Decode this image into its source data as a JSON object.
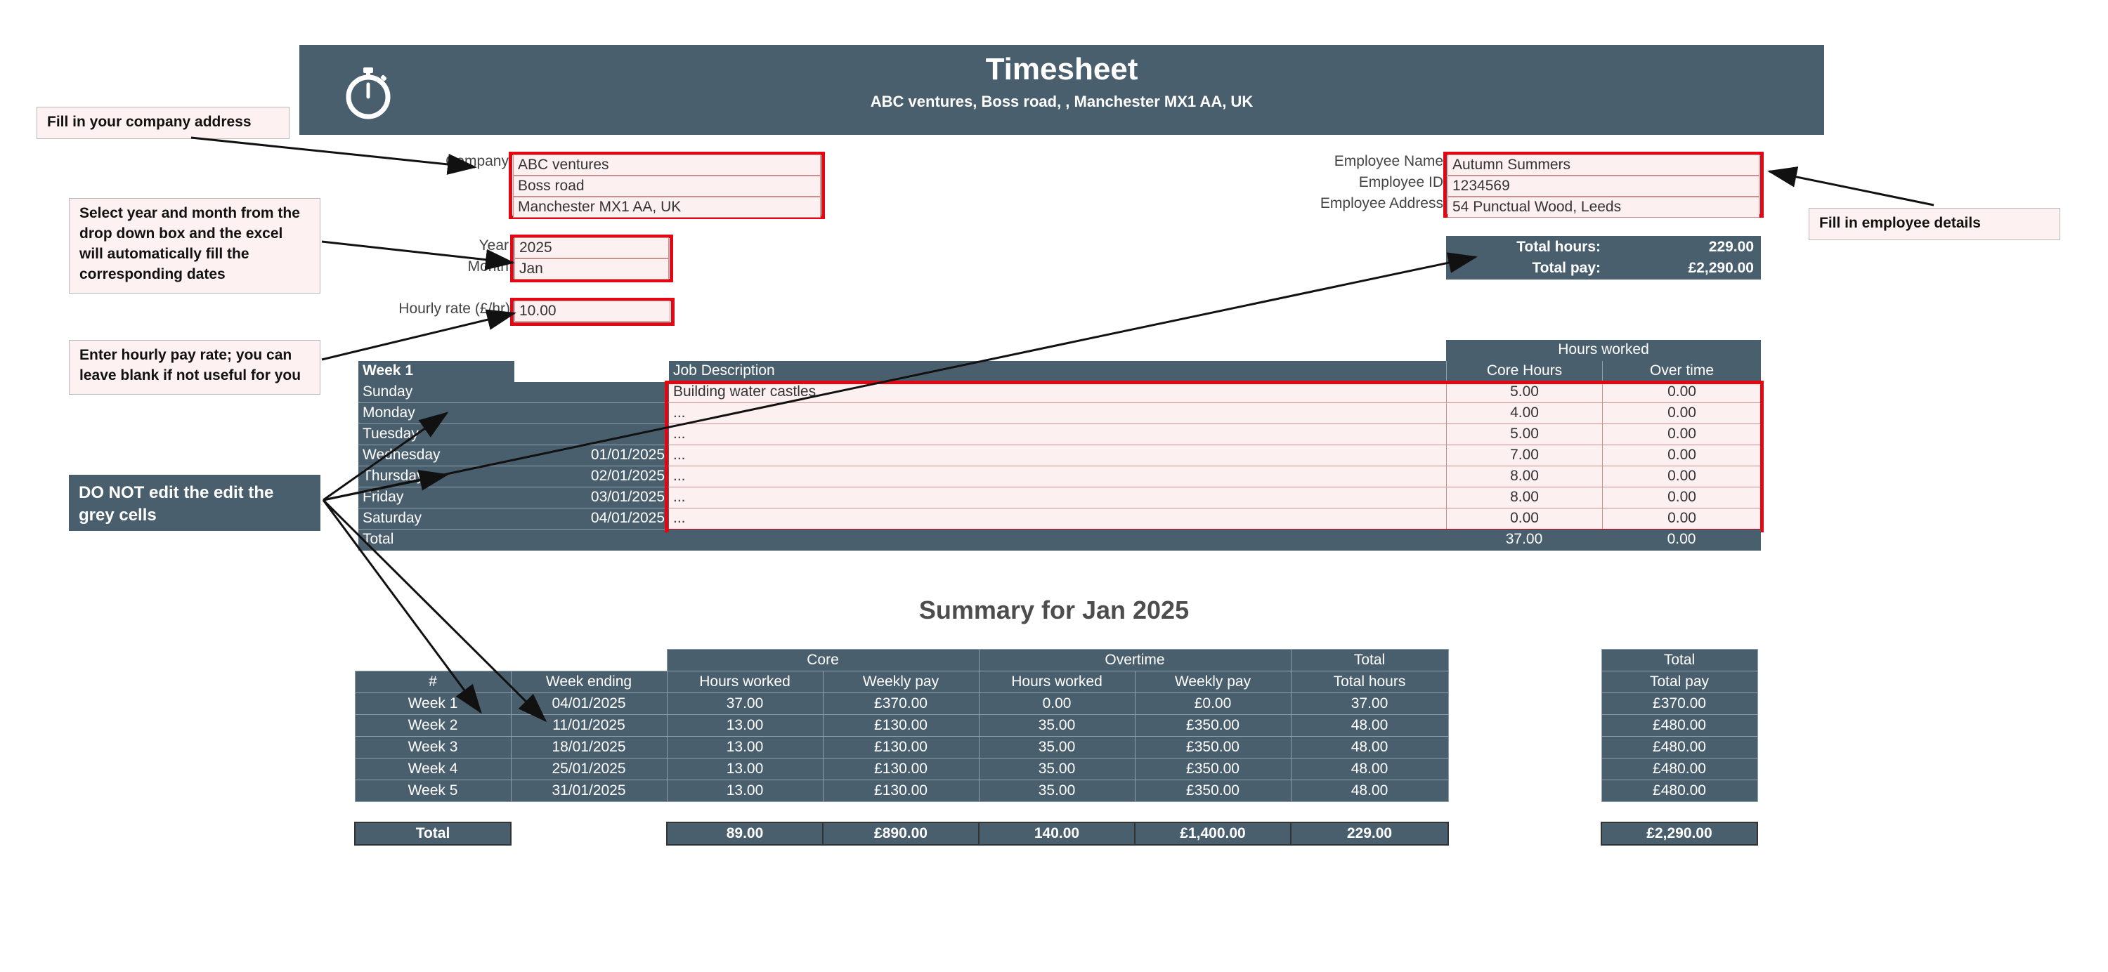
{
  "header": {
    "title": "Timesheet",
    "subtitle": "ABC ventures, Boss road, , Manchester MX1 AA, UK"
  },
  "notes": {
    "company": "Fill in your company address",
    "year_month": "Select year and month from the drop down box and the excel will automatically fill the corresponding dates",
    "hourly": "Enter hourly pay rate; you can leave blank if not useful for you",
    "grey": "DO NOT edit the edit the grey cells",
    "employee": "Fill in employee details"
  },
  "company": {
    "label": "Company",
    "lines": [
      "ABC ventures",
      "Boss road",
      "Manchester MX1 AA, UK"
    ]
  },
  "year": {
    "label": "Year",
    "value": "2025"
  },
  "month": {
    "label": "Month",
    "value": "Jan"
  },
  "hourly": {
    "label": "Hourly rate (£/hr)",
    "value": "10.00"
  },
  "employee": {
    "name_label": "Employee Name",
    "name": "Autumn Summers",
    "id_label": "Employee ID",
    "id": "1234569",
    "address_label": "Employee Address",
    "address": "54 Punctual Wood, Leeds"
  },
  "totals": {
    "hours_label": "Total hours:",
    "hours": "229.00",
    "pay_label": "Total pay:",
    "pay": "£2,290.00"
  },
  "week": {
    "title": "Week 1",
    "job_header": "Job Description",
    "hours_worked": "Hours worked",
    "core_header": "Core Hours",
    "ot_header": "Over time",
    "rows": [
      {
        "day": "Sunday",
        "date": "",
        "job": "Building water castles",
        "core": "5.00",
        "ot": "0.00"
      },
      {
        "day": "Monday",
        "date": "",
        "job": "...",
        "core": "4.00",
        "ot": "0.00"
      },
      {
        "day": "Tuesday",
        "date": "",
        "job": "...",
        "core": "5.00",
        "ot": "0.00"
      },
      {
        "day": "Wednesday",
        "date": "01/01/2025",
        "job": "...",
        "core": "7.00",
        "ot": "0.00"
      },
      {
        "day": "Thursday",
        "date": "02/01/2025",
        "job": "...",
        "core": "8.00",
        "ot": "0.00"
      },
      {
        "day": "Friday",
        "date": "03/01/2025",
        "job": "...",
        "core": "8.00",
        "ot": "0.00"
      },
      {
        "day": "Saturday",
        "date": "04/01/2025",
        "job": "...",
        "core": "0.00",
        "ot": "0.00"
      }
    ],
    "total_label": "Total",
    "total_core": "37.00",
    "total_ot": "0.00"
  },
  "summary": {
    "title": "Summary for Jan 2025",
    "group_core": "Core",
    "group_ot": "Overtime",
    "group_total": "Total",
    "headers": [
      "#",
      "Week ending",
      "Hours worked",
      "Weekly pay",
      "Hours worked",
      "Weekly pay",
      "Total hours"
    ],
    "pay_group": "Total",
    "pay_header": "Total pay",
    "rows": [
      {
        "week": "Week 1",
        "ending": "04/01/2025",
        "core_hours": "37.00",
        "core_pay": "£370.00",
        "ot_hours": "0.00",
        "ot_pay": "£0.00",
        "total_hours": "37.00",
        "total_pay": "£370.00"
      },
      {
        "week": "Week 2",
        "ending": "11/01/2025",
        "core_hours": "13.00",
        "core_pay": "£130.00",
        "ot_hours": "35.00",
        "ot_pay": "£350.00",
        "total_hours": "48.00",
        "total_pay": "£480.00"
      },
      {
        "week": "Week 3",
        "ending": "18/01/2025",
        "core_hours": "13.00",
        "core_pay": "£130.00",
        "ot_hours": "35.00",
        "ot_pay": "£350.00",
        "total_hours": "48.00",
        "total_pay": "£480.00"
      },
      {
        "week": "Week 4",
        "ending": "25/01/2025",
        "core_hours": "13.00",
        "core_pay": "£130.00",
        "ot_hours": "35.00",
        "ot_pay": "£350.00",
        "total_hours": "48.00",
        "total_pay": "£480.00"
      },
      {
        "week": "Week 5",
        "ending": "31/01/2025",
        "core_hours": "13.00",
        "core_pay": "£130.00",
        "ot_hours": "35.00",
        "ot_pay": "£350.00",
        "total_hours": "48.00",
        "total_pay": "£480.00"
      }
    ],
    "total": {
      "label": "Total",
      "core_hours": "89.00",
      "core_pay": "£890.00",
      "ot_hours": "140.00",
      "ot_pay": "£1,400.00",
      "total_hours": "229.00",
      "total_pay": "£2,290.00"
    }
  },
  "colors": {
    "header_bg": "#4a5f6d",
    "input_bg": "#fdf0f0",
    "highlight_border": "#e30613"
  },
  "icons": {
    "logo": "stopwatch-icon"
  }
}
